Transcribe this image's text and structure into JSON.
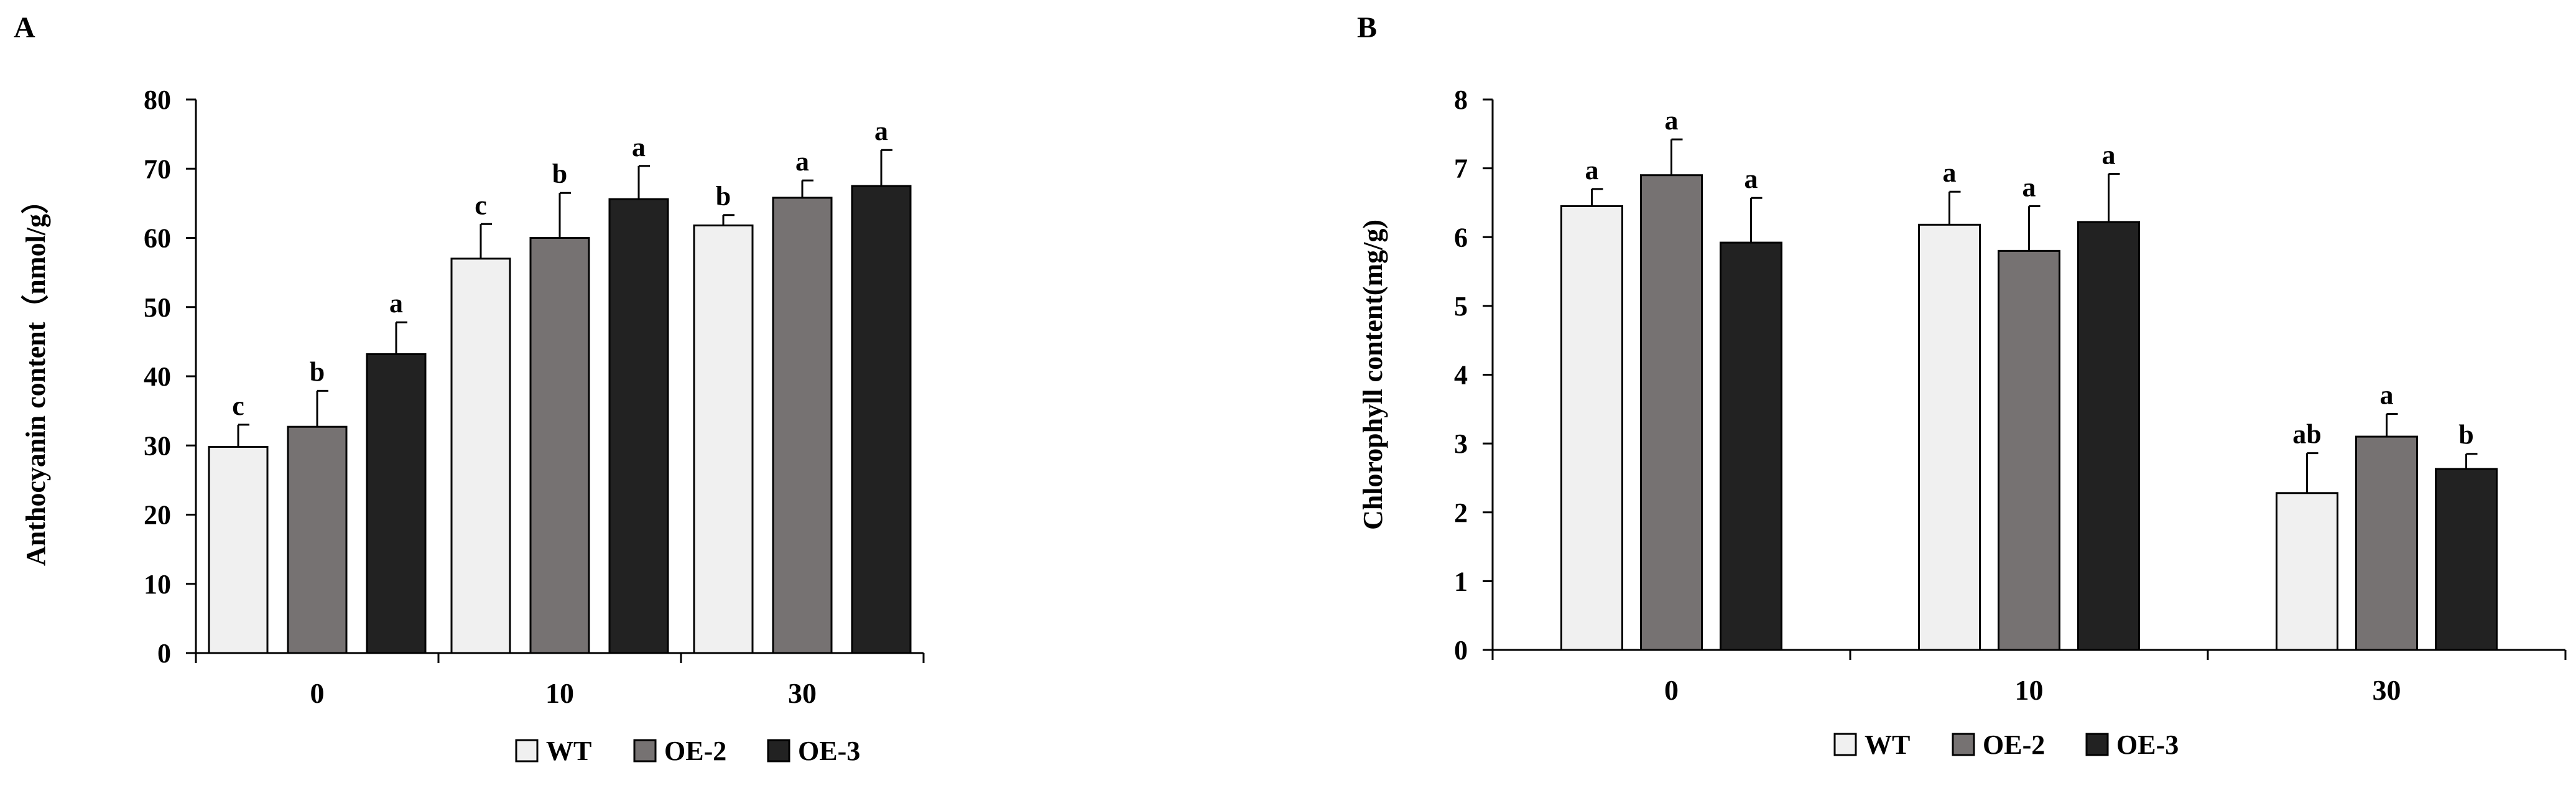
{
  "chart_data": [
    {
      "panel": "A",
      "type": "bar",
      "xlabel": "",
      "ylabel": "Anthocyanin content（nmol/g）",
      "ylim": [
        0,
        80
      ],
      "yticks": [
        0,
        10,
        20,
        30,
        40,
        50,
        60,
        70,
        80
      ],
      "categories": [
        "0",
        "10",
        "30"
      ],
      "series": [
        {
          "name": "WT",
          "color": "#f0f0f0",
          "values": [
            29.8,
            57.0,
            61.8
          ],
          "errors": [
            3.2,
            5.0,
            1.5
          ],
          "letters": [
            "c",
            "c",
            "b"
          ]
        },
        {
          "name": "OE-2",
          "color": "#767272",
          "values": [
            32.7,
            60.0,
            65.8
          ],
          "errors": [
            5.2,
            6.5,
            2.5
          ],
          "letters": [
            "b",
            "b",
            "a"
          ]
        },
        {
          "name": "OE-3",
          "color": "#222222",
          "values": [
            43.2,
            65.6,
            67.5
          ],
          "errors": [
            4.6,
            4.8,
            5.2
          ],
          "letters": [
            "a",
            "a",
            "a"
          ]
        }
      ],
      "grid": false,
      "legend": "bottom-center"
    },
    {
      "panel": "B",
      "type": "bar",
      "xlabel": "",
      "ylabel": "Chlorophyll content(mg/g)",
      "ylim": [
        0,
        8
      ],
      "yticks": [
        0,
        1,
        2,
        3,
        4,
        5,
        6,
        7,
        8
      ],
      "categories": [
        "0",
        "10",
        "30"
      ],
      "series": [
        {
          "name": "WT",
          "color": "#f0f0f0",
          "values": [
            6.45,
            6.18,
            2.28
          ],
          "errors": [
            0.25,
            0.48,
            0.58
          ],
          "letters": [
            "a",
            "a",
            "ab"
          ]
        },
        {
          "name": "OE-2",
          "color": "#767272",
          "values": [
            6.9,
            5.8,
            3.1
          ],
          "errors": [
            0.52,
            0.65,
            0.33
          ],
          "letters": [
            "a",
            "a",
            "a"
          ]
        },
        {
          "name": "OE-3",
          "color": "#222222",
          "values": [
            5.92,
            6.22,
            2.63
          ],
          "errors": [
            0.65,
            0.7,
            0.22
          ],
          "letters": [
            "a",
            "a",
            "b"
          ]
        }
      ],
      "grid": false,
      "legend": "bottom-center"
    }
  ]
}
